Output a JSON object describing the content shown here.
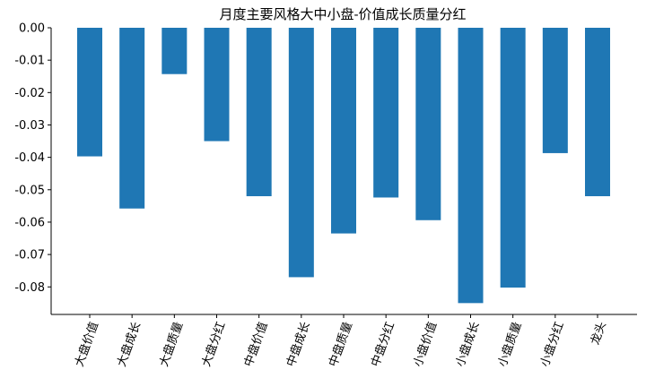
{
  "chart_data": {
    "type": "bar",
    "title": "月度主要风格大中小盘-价值成长质量分红",
    "xlabel": "",
    "ylabel": "",
    "categories": [
      "大盘价值",
      "大盘成长",
      "大盘质量",
      "大盘分红",
      "中盘价值",
      "中盘成长",
      "中盘质量",
      "中盘分红",
      "小盘价值",
      "小盘成长",
      "小盘质量",
      "小盘分红",
      "龙头"
    ],
    "values": [
      -0.0397,
      -0.0558,
      -0.0143,
      -0.035,
      -0.052,
      -0.077,
      -0.0635,
      -0.0524,
      -0.0594,
      -0.085,
      -0.0802,
      -0.0387,
      -0.052
    ],
    "ylim": [
      -0.0885,
      0.0
    ],
    "yticks": [
      0.0,
      -0.01,
      -0.02,
      -0.03,
      -0.04,
      -0.05,
      -0.06,
      -0.07,
      -0.08
    ],
    "ytick_labels": [
      "0.00",
      "-0.01",
      "-0.02",
      "-0.03",
      "-0.04",
      "-0.05",
      "-0.06",
      "-0.07",
      "-0.08"
    ],
    "bar_color": "#1f77b4",
    "grid": false,
    "legend": "none"
  }
}
